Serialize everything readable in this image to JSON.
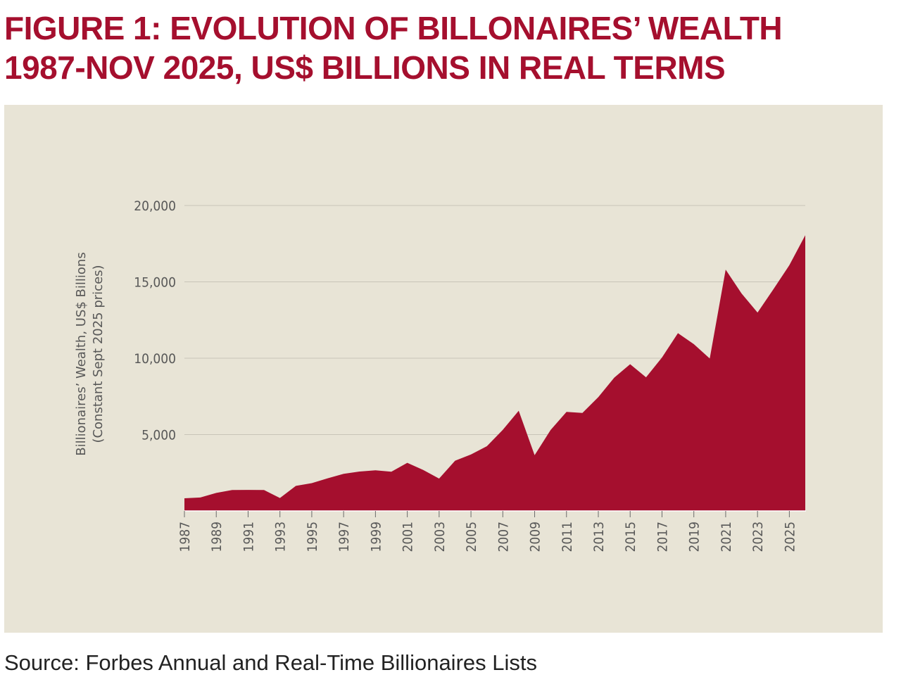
{
  "title": {
    "line1": "FIGURE 1: EVOLUTION OF BILLONAIRES’ WEALTH",
    "line2": "1987-NOV 2025, US$ BILLIONS  IN REAL TERMS"
  },
  "source": "Source: Forbes Annual and Real-Time Billionaires Lists",
  "colors": {
    "title": "#a50f2e",
    "area": "#a50f2e",
    "background": "#e8e4d6",
    "grid": "#c8c4b8"
  },
  "chart_data": {
    "type": "area",
    "title": "FIGURE 1: EVOLUTION OF BILLONAIRES’ WEALTH 1987-NOV 2025, US$ BILLIONS  IN REAL TERMS",
    "ylabel": [
      "Billionaires’ Wealth, US$ Billions",
      "(Constant Sept 2025 prices)"
    ],
    "xlabel": "",
    "grid": "horizontal",
    "ylim": [
      0,
      20000
    ],
    "yticks": [
      5000,
      10000,
      15000,
      20000
    ],
    "ytick_labels": [
      "5,000",
      "10,000",
      "15,000",
      "20,000"
    ],
    "xticks": [
      "1987",
      "1989",
      "1991",
      "1993",
      "1995",
      "1997",
      "1999",
      "2001",
      "2003",
      "2005",
      "2007",
      "2009",
      "2011",
      "2013",
      "2015",
      "2017",
      "2019",
      "2021",
      "2023",
      "2025"
    ],
    "x": [
      1987,
      1988,
      1989,
      1990,
      1991,
      1992,
      1993,
      1994,
      1995,
      1996,
      1997,
      1998,
      1999,
      2000,
      2001,
      2002,
      2003,
      2004,
      2005,
      2006,
      2007,
      2008,
      2009,
      2010,
      2011,
      2012,
      2013,
      2014,
      2015,
      2016,
      2017,
      2018,
      2019,
      2020,
      2021,
      2022,
      2023,
      2024,
      2025,
      2026
    ],
    "series": [
      {
        "values": [
          830,
          880,
          1180,
          1370,
          1380,
          1370,
          850,
          1640,
          1820,
          2140,
          2430,
          2580,
          2660,
          2570,
          3150,
          2680,
          2120,
          3290,
          3700,
          4240,
          5310,
          6560,
          3650,
          5300,
          6490,
          6420,
          7450,
          8730,
          9610,
          8750,
          10050,
          11640,
          10920,
          9980,
          15800,
          14240,
          12990,
          14520,
          16090,
          18050
        ]
      }
    ]
  }
}
